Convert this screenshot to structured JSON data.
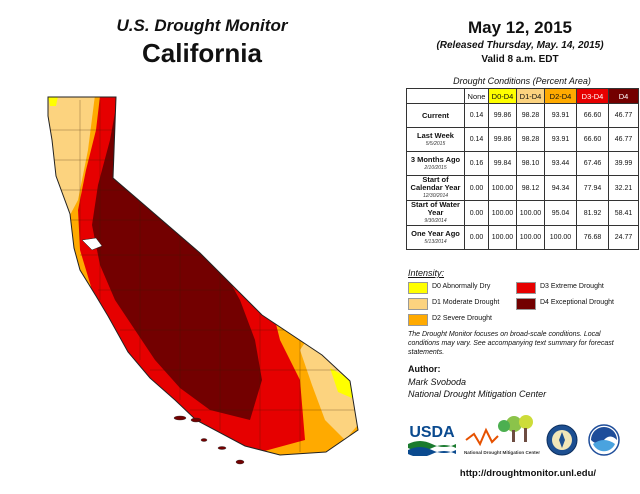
{
  "header": {
    "program": "U.S. Drought Monitor",
    "state": "California"
  },
  "date": {
    "main": "May 12, 2015",
    "released": "(Released Thursday, May. 14, 2015)",
    "valid": "Valid 8 a.m. EDT"
  },
  "table": {
    "caption": "Drought Conditions (Percent Area)",
    "columns": [
      "None",
      "D0-D4",
      "D1-D4",
      "D2-D4",
      "D3-D4",
      "D4"
    ],
    "rows": [
      {
        "label": "Current",
        "date": "",
        "values": [
          "0.14",
          "99.86",
          "98.28",
          "93.91",
          "66.60",
          "46.77"
        ]
      },
      {
        "label": "Last Week",
        "date": "5/5/2015",
        "values": [
          "0.14",
          "99.86",
          "98.28",
          "93.91",
          "66.60",
          "46.77"
        ]
      },
      {
        "label": "3 Months Ago",
        "date": "2/10/2015",
        "values": [
          "0.16",
          "99.84",
          "98.10",
          "93.44",
          "67.46",
          "39.99"
        ]
      },
      {
        "label": "Start of Calendar Year",
        "date": "12/30/2014",
        "values": [
          "0.00",
          "100.00",
          "98.12",
          "94.34",
          "77.94",
          "32.21"
        ]
      },
      {
        "label": "Start of Water Year",
        "date": "9/30/2014",
        "values": [
          "0.00",
          "100.00",
          "100.00",
          "95.04",
          "81.92",
          "58.41"
        ]
      },
      {
        "label": "One Year Ago",
        "date": "5/13/2014",
        "values": [
          "0.00",
          "100.00",
          "100.00",
          "100.00",
          "76.68",
          "24.77"
        ]
      }
    ]
  },
  "legend": {
    "title": "Intensity:",
    "items": [
      {
        "label": "D0 Abnormally Dry",
        "color": "#ffff00"
      },
      {
        "label": "D1 Moderate Drought",
        "color": "#fcd37f"
      },
      {
        "label": "D2 Severe Drought",
        "color": "#ffaa00"
      },
      {
        "label": "D3 Extreme Drought",
        "color": "#e60000"
      },
      {
        "label": "D4 Exceptional Drought",
        "color": "#730000"
      }
    ]
  },
  "note": "The Drought Monitor focuses on broad-scale conditions. Local conditions may vary. See accompanying text summary for forecast statements.",
  "author": {
    "heading": "Author:",
    "name": "Mark Svoboda",
    "org": "National Drought Mitigation Center"
  },
  "logos": {
    "usda": "USDA",
    "ndmc": "National Drought Mitigation Center"
  },
  "url": "http://droughtmonitor.unl.edu/"
}
